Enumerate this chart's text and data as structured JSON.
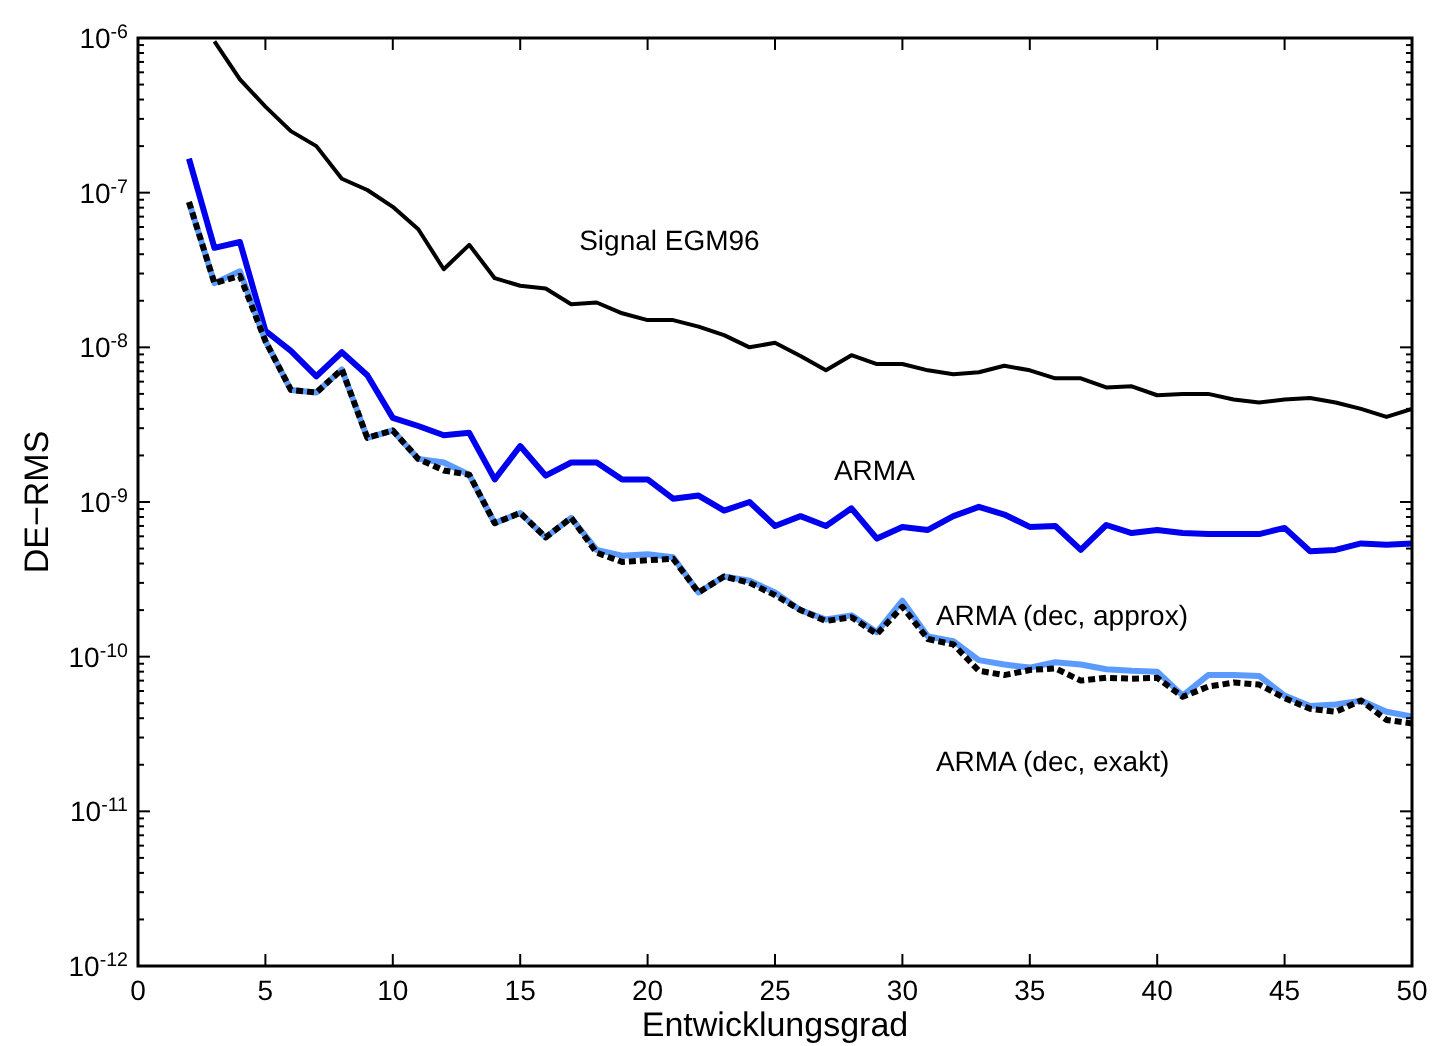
{
  "chart_data": {
    "type": "line",
    "xlabel": "Entwicklungsgrad",
    "ylabel": "DE−RMS",
    "log": "y",
    "xlim": [
      0,
      50
    ],
    "xticks": [
      0,
      5,
      10,
      15,
      20,
      25,
      30,
      35,
      40,
      45,
      50
    ],
    "ylim": [
      1e-12,
      1e-06
    ],
    "yticks": [
      {
        "value": 1e-12,
        "label": "10$^{-12}$"
      },
      {
        "value": 1e-11,
        "label": "10$^{-11}$"
      },
      {
        "value": 1e-10,
        "label": "10$^{-10}$"
      },
      {
        "value": 1e-09,
        "label": "10$^{-9}$"
      },
      {
        "value": 1e-08,
        "label": "10$^{-8}$"
      },
      {
        "value": 1e-07,
        "label": "10$^{-7}$"
      },
      {
        "value": 1e-06,
        "label": "10$^{-6}$"
      }
    ],
    "grid": false,
    "legend": false,
    "series": [
      {
        "name": "Signal EGM96",
        "color": "#000000",
        "line_style": "solid",
        "x": [
          3,
          4,
          5,
          6,
          7,
          8,
          9,
          10,
          11,
          12,
          13,
          14,
          15,
          16,
          17,
          18,
          19,
          20,
          21,
          22,
          23,
          24,
          25,
          26,
          27,
          28,
          29,
          30,
          31,
          32,
          33,
          34,
          35,
          36,
          37,
          38,
          39,
          40,
          41,
          42,
          43,
          44,
          45,
          46,
          47,
          48,
          49,
          50
        ],
        "values": [
          9.5e-07,
          5.4e-07,
          3.6e-07,
          2.5e-07,
          2e-07,
          1.23e-07,
          1.04e-07,
          8.1e-08,
          5.8e-08,
          3.2e-08,
          4.6e-08,
          2.8e-08,
          2.5e-08,
          2.4e-08,
          1.9e-08,
          1.95e-08,
          1.66e-08,
          1.5e-08,
          1.5e-08,
          1.36e-08,
          1.2e-08,
          1e-08,
          1.07e-08,
          8.8e-09,
          7.1e-09,
          8.9e-09,
          7.8e-09,
          7.8e-09,
          7.1e-09,
          6.7e-09,
          6.9e-09,
          7.6e-09,
          7.1e-09,
          6.3e-09,
          6.3e-09,
          5.5e-09,
          5.6e-09,
          4.9e-09,
          5e-09,
          5e-09,
          4.6e-09,
          4.4e-09,
          4.6e-09,
          4.7e-09,
          4.4e-09,
          4e-09,
          3.55e-09,
          4e-09
        ]
      },
      {
        "name": "ARMA",
        "color": "#0000ee",
        "line_style": "solid",
        "x": [
          2,
          3,
          4,
          5,
          6,
          7,
          8,
          9,
          10,
          11,
          12,
          13,
          14,
          15,
          16,
          17,
          18,
          19,
          20,
          21,
          22,
          23,
          24,
          25,
          26,
          27,
          28,
          29,
          30,
          31,
          32,
          33,
          34,
          35,
          36,
          37,
          38,
          39,
          40,
          41,
          42,
          43,
          44,
          45,
          46,
          47,
          48,
          49,
          50
        ],
        "values": [
          1.66e-07,
          4.4e-08,
          4.8e-08,
          1.28e-08,
          9.5e-09,
          6.5e-09,
          9.3e-09,
          6.6e-09,
          3.5e-09,
          3.1e-09,
          2.7e-09,
          2.8e-09,
          1.4e-09,
          2.3e-09,
          1.48e-09,
          1.8e-09,
          1.8e-09,
          1.4e-09,
          1.4e-09,
          1.05e-09,
          1.1e-09,
          8.8e-10,
          1e-09,
          7e-10,
          8.1e-10,
          7e-10,
          9.1e-10,
          5.8e-10,
          6.9e-10,
          6.6e-10,
          8.1e-10,
          9.3e-10,
          8.3e-10,
          6.9e-10,
          7e-10,
          4.9e-10,
          7.1e-10,
          6.3e-10,
          6.6e-10,
          6.3e-10,
          6.2e-10,
          6.2e-10,
          6.2e-10,
          6.8e-10,
          4.8e-10,
          4.9e-10,
          5.4e-10,
          5.3e-10,
          5.4e-10
        ]
      },
      {
        "name": "ARMA (dec, exakt)",
        "color": "#000000",
        "line_style": "dashed",
        "x": [
          2,
          3,
          4,
          5,
          6,
          7,
          8,
          9,
          10,
          11,
          12,
          13,
          14,
          15,
          16,
          17,
          18,
          19,
          20,
          21,
          22,
          23,
          24,
          25,
          26,
          27,
          28,
          29,
          30,
          31,
          32,
          33,
          34,
          35,
          36,
          37,
          38,
          39,
          40,
          41,
          42,
          43,
          44,
          45,
          46,
          47,
          48,
          49,
          50
        ],
        "values": [
          8.7e-08,
          2.6e-08,
          2.9e-08,
          1.1e-08,
          5.3e-09,
          5.1e-09,
          7.2e-09,
          2.6e-09,
          2.9e-09,
          1.9e-09,
          1.6e-09,
          1.5e-09,
          7.3e-10,
          8.5e-10,
          5.9e-10,
          7.9e-10,
          4.7e-10,
          4.1e-10,
          4.2e-10,
          4.3e-10,
          2.6e-10,
          3.3e-10,
          3e-10,
          2.5e-10,
          2e-10,
          1.7e-10,
          1.8e-10,
          1.4e-10,
          2.1e-10,
          1.3e-10,
          1.2e-10,
          8.1e-11,
          7.6e-11,
          8.2e-11,
          8.4e-11,
          7e-11,
          7.3e-11,
          7.2e-11,
          7.3e-11,
          5.5e-11,
          6.4e-11,
          6.8e-11,
          6.6e-11,
          5.4e-11,
          4.6e-11,
          4.4e-11,
          5.2e-11,
          3.9e-11,
          3.7e-11
        ]
      },
      {
        "name": "ARMA (dec, approx)",
        "color": "#5b9bff",
        "line_style": "solid",
        "x": [
          2,
          3,
          4,
          5,
          6,
          7,
          8,
          9,
          10,
          11,
          12,
          13,
          14,
          15,
          16,
          17,
          18,
          19,
          20,
          21,
          22,
          23,
          24,
          25,
          26,
          27,
          28,
          29,
          30,
          31,
          32,
          33,
          34,
          35,
          36,
          37,
          38,
          39,
          40,
          41,
          42,
          43,
          44,
          45,
          46,
          47,
          48,
          49,
          50
        ],
        "values": [
          8.7e-08,
          2.6e-08,
          3.1e-08,
          1.1e-08,
          5.3e-09,
          5.1e-09,
          7.2e-09,
          2.6e-09,
          2.9e-09,
          1.9e-09,
          1.8e-09,
          1.5e-09,
          7.3e-10,
          8.5e-10,
          5.9e-10,
          7.9e-10,
          4.9e-10,
          4.5e-10,
          4.6e-10,
          4.4e-10,
          2.6e-10,
          3.3e-10,
          3.1e-10,
          2.6e-10,
          2e-10,
          1.74e-10,
          1.85e-10,
          1.44e-10,
          2.3e-10,
          1.35e-10,
          1.26e-10,
          9.5e-11,
          8.9e-11,
          8.5e-11,
          9.2e-11,
          8.9e-11,
          8.3e-11,
          8.1e-11,
          8e-11,
          5.6e-11,
          7.6e-11,
          7.6e-11,
          7.5e-11,
          5.6e-11,
          4.8e-11,
          4.9e-11,
          5.2e-11,
          4.4e-11,
          4.1e-11
        ]
      }
    ]
  }
}
